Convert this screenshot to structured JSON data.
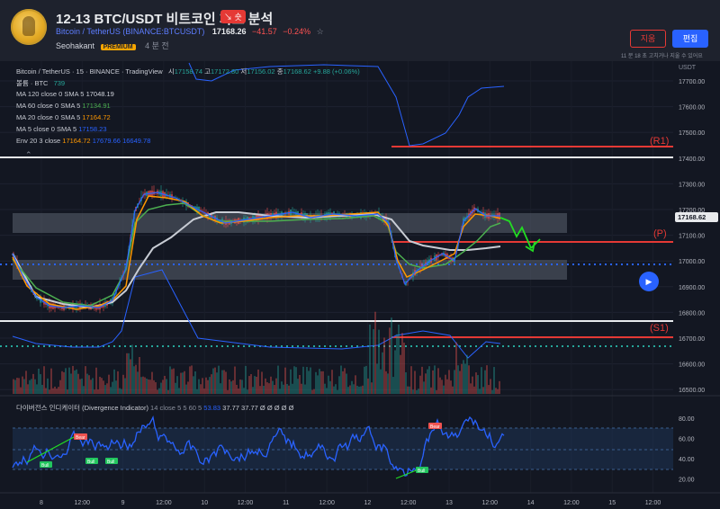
{
  "header": {
    "title": "12-13 BTC/USDT 비트코인 차트 분석",
    "direction_badge": "↘ 숏",
    "pair_text": "Bitcoin / TetherUS",
    "pair_symbol": "(BINANCE:BTCUSDT)",
    "price": "17168.26",
    "change": "−41.57",
    "change_pct": "−0.24%",
    "author": "Seohakant",
    "author_badge": "PREMIUM",
    "posted_ago": "4 분 전",
    "cancel_label": "지움",
    "edit_label": "편집",
    "edit_note": "11 분 18 초 고치거나 지울 수 있어요"
  },
  "chart": {
    "ohlc_title": "Bitcoin / TetherUS · 15 · BINANCE · TradingView",
    "ohlc": {
      "o_label": "시",
      "o": "17158.74",
      "h_label": "고",
      "h": "17172.80",
      "l_label": "저",
      "l": "17156.02",
      "c_label": "종",
      "c": "17168.62",
      "chg": "+9.88 (+0.06%)"
    },
    "volume_label": "볼륨 · BTC",
    "volume_value": "739",
    "ma_lines": [
      {
        "label": "MA 120 close 0 SMA 5",
        "value": "17048.19",
        "color": "#d1d4dc"
      },
      {
        "label": "MA 60 close 0 SMA 5",
        "value": "17134.91",
        "color": "#4caf50"
      },
      {
        "label": "MA 20 close 0 SMA 5",
        "value": "17164.72",
        "color": "#ff9800"
      },
      {
        "label": "MA 5 close 0 SMA 5",
        "value": "17158.23",
        "color": "#2962ff"
      }
    ],
    "env_label": "Env 20 3 close",
    "env_values": [
      "17164.72",
      "17679.66",
      "16649.78"
    ],
    "currency": "USDT",
    "price_ticks": [
      "17700.00",
      "17600.00",
      "17500.00",
      "17400.00",
      "17300.00",
      "17200.00",
      "17100.00",
      "17000.00",
      "16900.00",
      "16800.00",
      "16700.00",
      "16600.00",
      "16500.00"
    ],
    "current_price_tag": "17168.62",
    "levels": [
      {
        "label": "(R1)",
        "color": "#e53935"
      },
      {
        "label": "(P)",
        "color": "#e53935"
      },
      {
        "label": "(S1)",
        "color": "#e53935"
      }
    ],
    "time_ticks": [
      "8",
      "12:00",
      "9",
      "12:00",
      "10",
      "12:00",
      "11",
      "12:00",
      "12",
      "12:00",
      "13",
      "12:00",
      "14",
      "12:00",
      "15",
      "12:00"
    ],
    "indicator_title": "다이버전스 인디케이터 (Divergence Indicator)",
    "indicator_params": "14 close 5 5 60 5",
    "indicator_values": [
      "53.83",
      "37.77",
      "37.77",
      "Ø Ø Ø Ø Ø"
    ],
    "indicator_ticks": [
      "80.00",
      "60.00",
      "40.00",
      "20.00"
    ],
    "signal_bull": "Bull",
    "signal_bear": "Bear"
  },
  "colors": {
    "background": "#131722",
    "panel": "#1e222d",
    "accent": "#2962ff",
    "up": "#26a69a",
    "down": "#ef5350",
    "level": "#e53935",
    "sideband": "#5b6270"
  },
  "icons": {
    "logo": "bitcoin-coin-logo",
    "play": "play-icon",
    "star": "star-icon"
  }
}
